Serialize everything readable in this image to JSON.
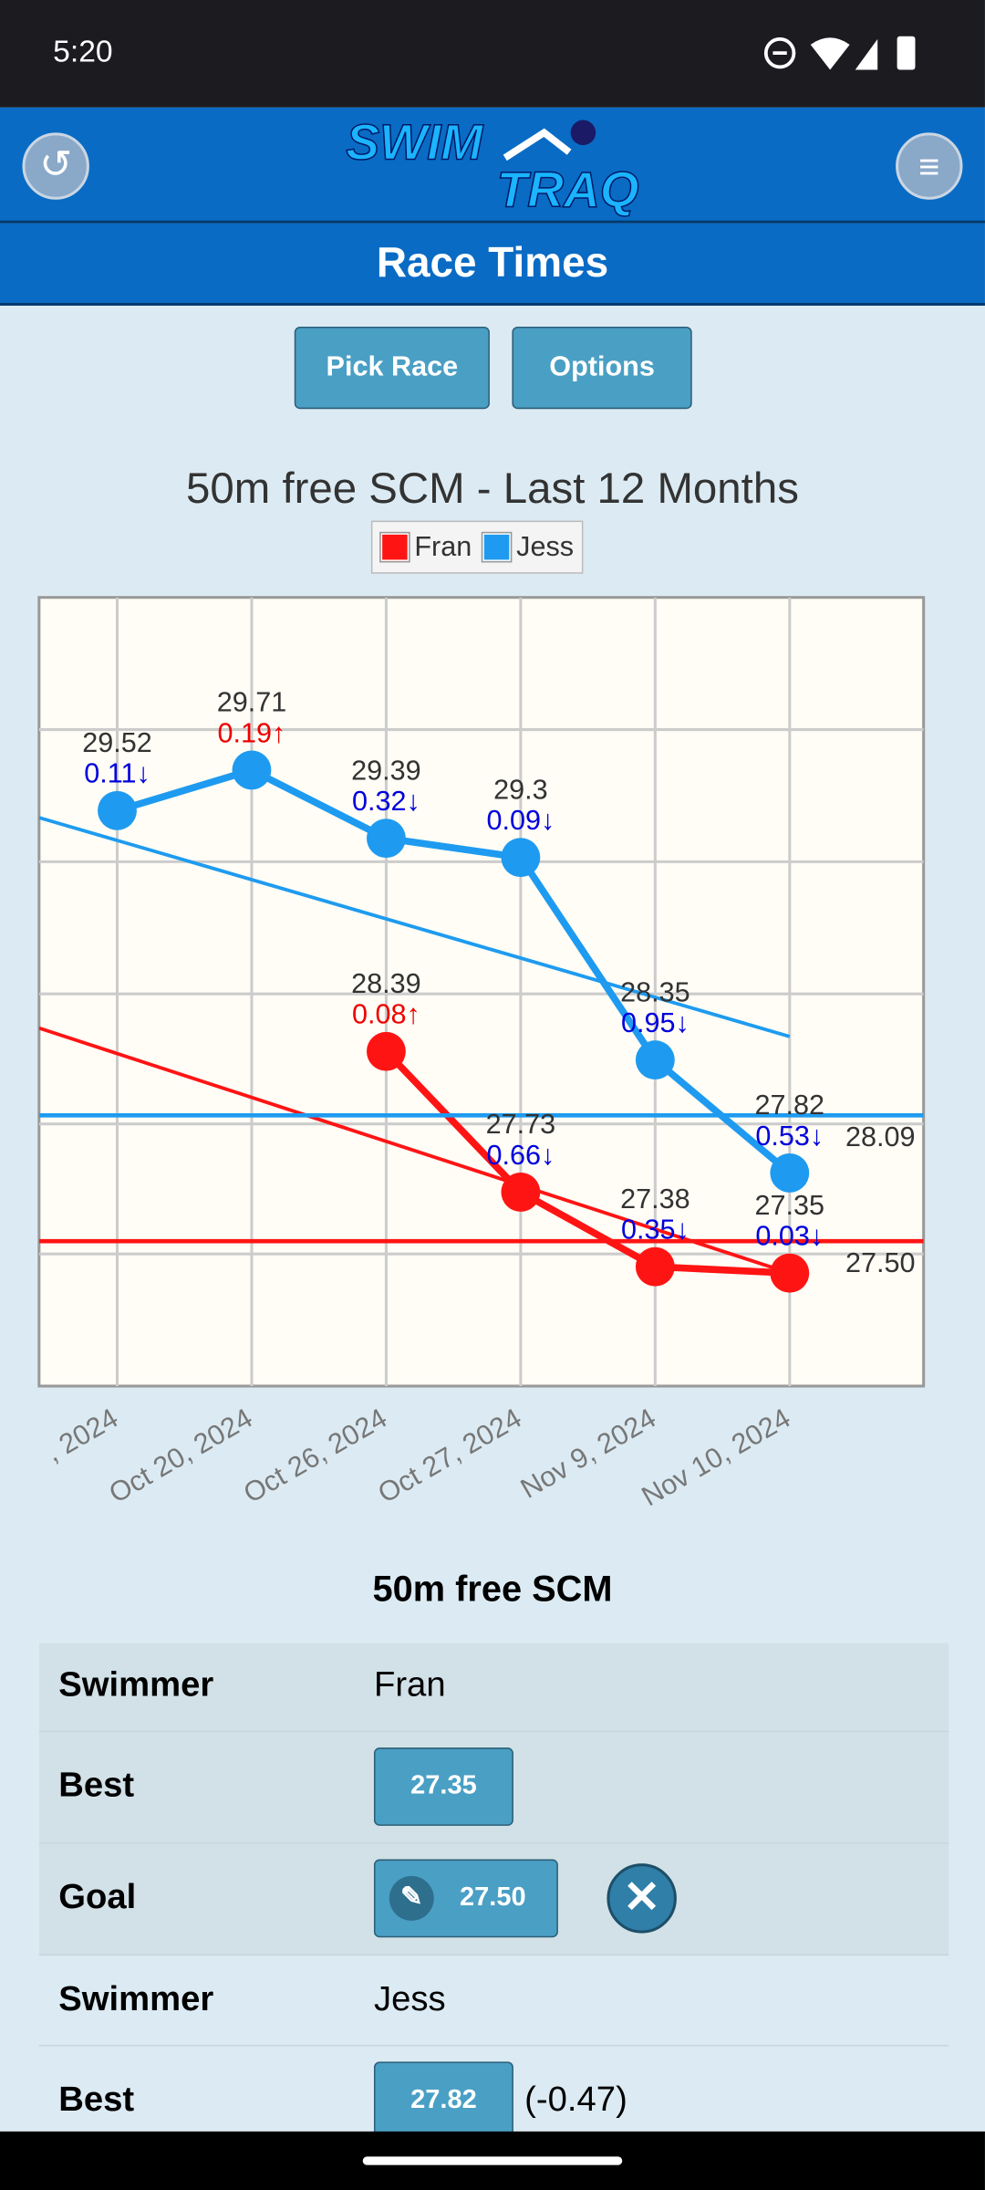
{
  "status_bar": {
    "time": "5:20"
  },
  "header": {
    "logo_top": "SWIM",
    "logo_bottom": "TRAQ",
    "title": "Race Times"
  },
  "buttons": [
    "Pick Race",
    "Options"
  ],
  "chart_data": {
    "type": "line",
    "title": "50m free SCM - Last 12 Months",
    "categories": [
      ", 2024",
      "Oct 20, 2024",
      "Oct 26, 2024",
      "Oct 27, 2024",
      "Nov 9, 2024",
      "Nov 10, 2024"
    ],
    "series": [
      {
        "name": "Fran",
        "color": "#ff1414",
        "values": [
          null,
          null,
          28.39,
          27.73,
          27.38,
          27.35
        ],
        "deltas": [
          null,
          null,
          "0.08↑",
          "0.66↓",
          "0.35↓",
          "0.03↓"
        ],
        "goal": {
          "value": 27.5,
          "label": "27.50"
        },
        "trend": [
          28.38,
          27.35
        ]
      },
      {
        "name": "Jess",
        "color": "#1e9bf0",
        "values": [
          29.52,
          29.71,
          29.39,
          29.3,
          28.35,
          27.82
        ],
        "deltas": [
          "0.11↓",
          "0.19↑",
          "0.32↓",
          "0.09↓",
          "0.95↓",
          "0.53↓"
        ],
        "goal": {
          "value": 28.09,
          "label": "28.09"
        },
        "trend": [
          29.38,
          28.46
        ]
      }
    ],
    "ylim": [
      26.82,
      30.52
    ],
    "yticks": [
      27.44,
      28.05,
      28.66,
      29.28,
      29.9
    ],
    "grid": true,
    "legend": "top"
  },
  "table": {
    "title": "50m free SCM",
    "rows": [
      [
        "Swimmer",
        "Fran"
      ],
      [
        "Best",
        "27.35"
      ],
      [
        "Goal",
        "27.50"
      ],
      [
        "Swimmer",
        "Jess"
      ],
      [
        "Best",
        "27.82",
        "(-0.47)"
      ]
    ]
  }
}
